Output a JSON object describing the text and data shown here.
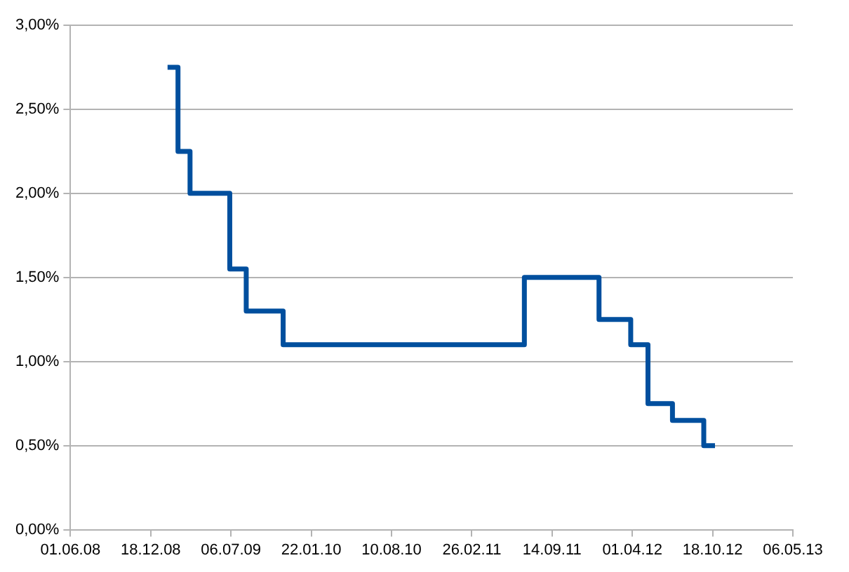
{
  "chart_data": {
    "type": "step",
    "x": [
      "2009-01-29",
      "2009-02-24",
      "2009-03-26",
      "2009-07-03",
      "2009-08-13",
      "2009-11-13",
      "2011-07-07",
      "2012-01-09",
      "2012-03-28",
      "2012-05-10",
      "2012-07-10",
      "2012-09-26",
      "2012-10-24"
    ],
    "series": [
      {
        "color": "#004f9e",
        "values": [
          2.75,
          2.25,
          2.0,
          1.55,
          1.3,
          1.1,
          1.5,
          1.25,
          1.1,
          0.75,
          0.65,
          0.5,
          0.5
        ]
      }
    ],
    "xlim": [
      "2008-06-01",
      "2013-05-06"
    ],
    "xticks": [
      {
        "value": "2008-06-01",
        "label": "01.06.08"
      },
      {
        "value": "2008-12-18",
        "label": "18.12.08"
      },
      {
        "value": "2009-07-06",
        "label": "06.07.09"
      },
      {
        "value": "2010-01-22",
        "label": "22.01.10"
      },
      {
        "value": "2010-08-10",
        "label": "10.08.10"
      },
      {
        "value": "2011-02-26",
        "label": "26.02.11"
      },
      {
        "value": "2011-09-14",
        "label": "14.09.11"
      },
      {
        "value": "2012-04-01",
        "label": "01.04.12"
      },
      {
        "value": "2012-10-18",
        "label": "18.10.12"
      },
      {
        "value": "2013-05-06",
        "label": "06.05.13"
      }
    ],
    "ylim": [
      0,
      3
    ],
    "yticks": [
      {
        "value": 0,
        "label": "0,00%"
      },
      {
        "value": 0.5,
        "label": "0,50%"
      },
      {
        "value": 1,
        "label": "1,00%"
      },
      {
        "value": 1.5,
        "label": "1,50%"
      },
      {
        "value": 2,
        "label": "2,00%"
      },
      {
        "value": 2.5,
        "label": "2,50%"
      },
      {
        "value": 3,
        "label": "3,00%"
      }
    ],
    "grid": "y",
    "legend": false,
    "marker": "none",
    "line_style": "solid"
  }
}
